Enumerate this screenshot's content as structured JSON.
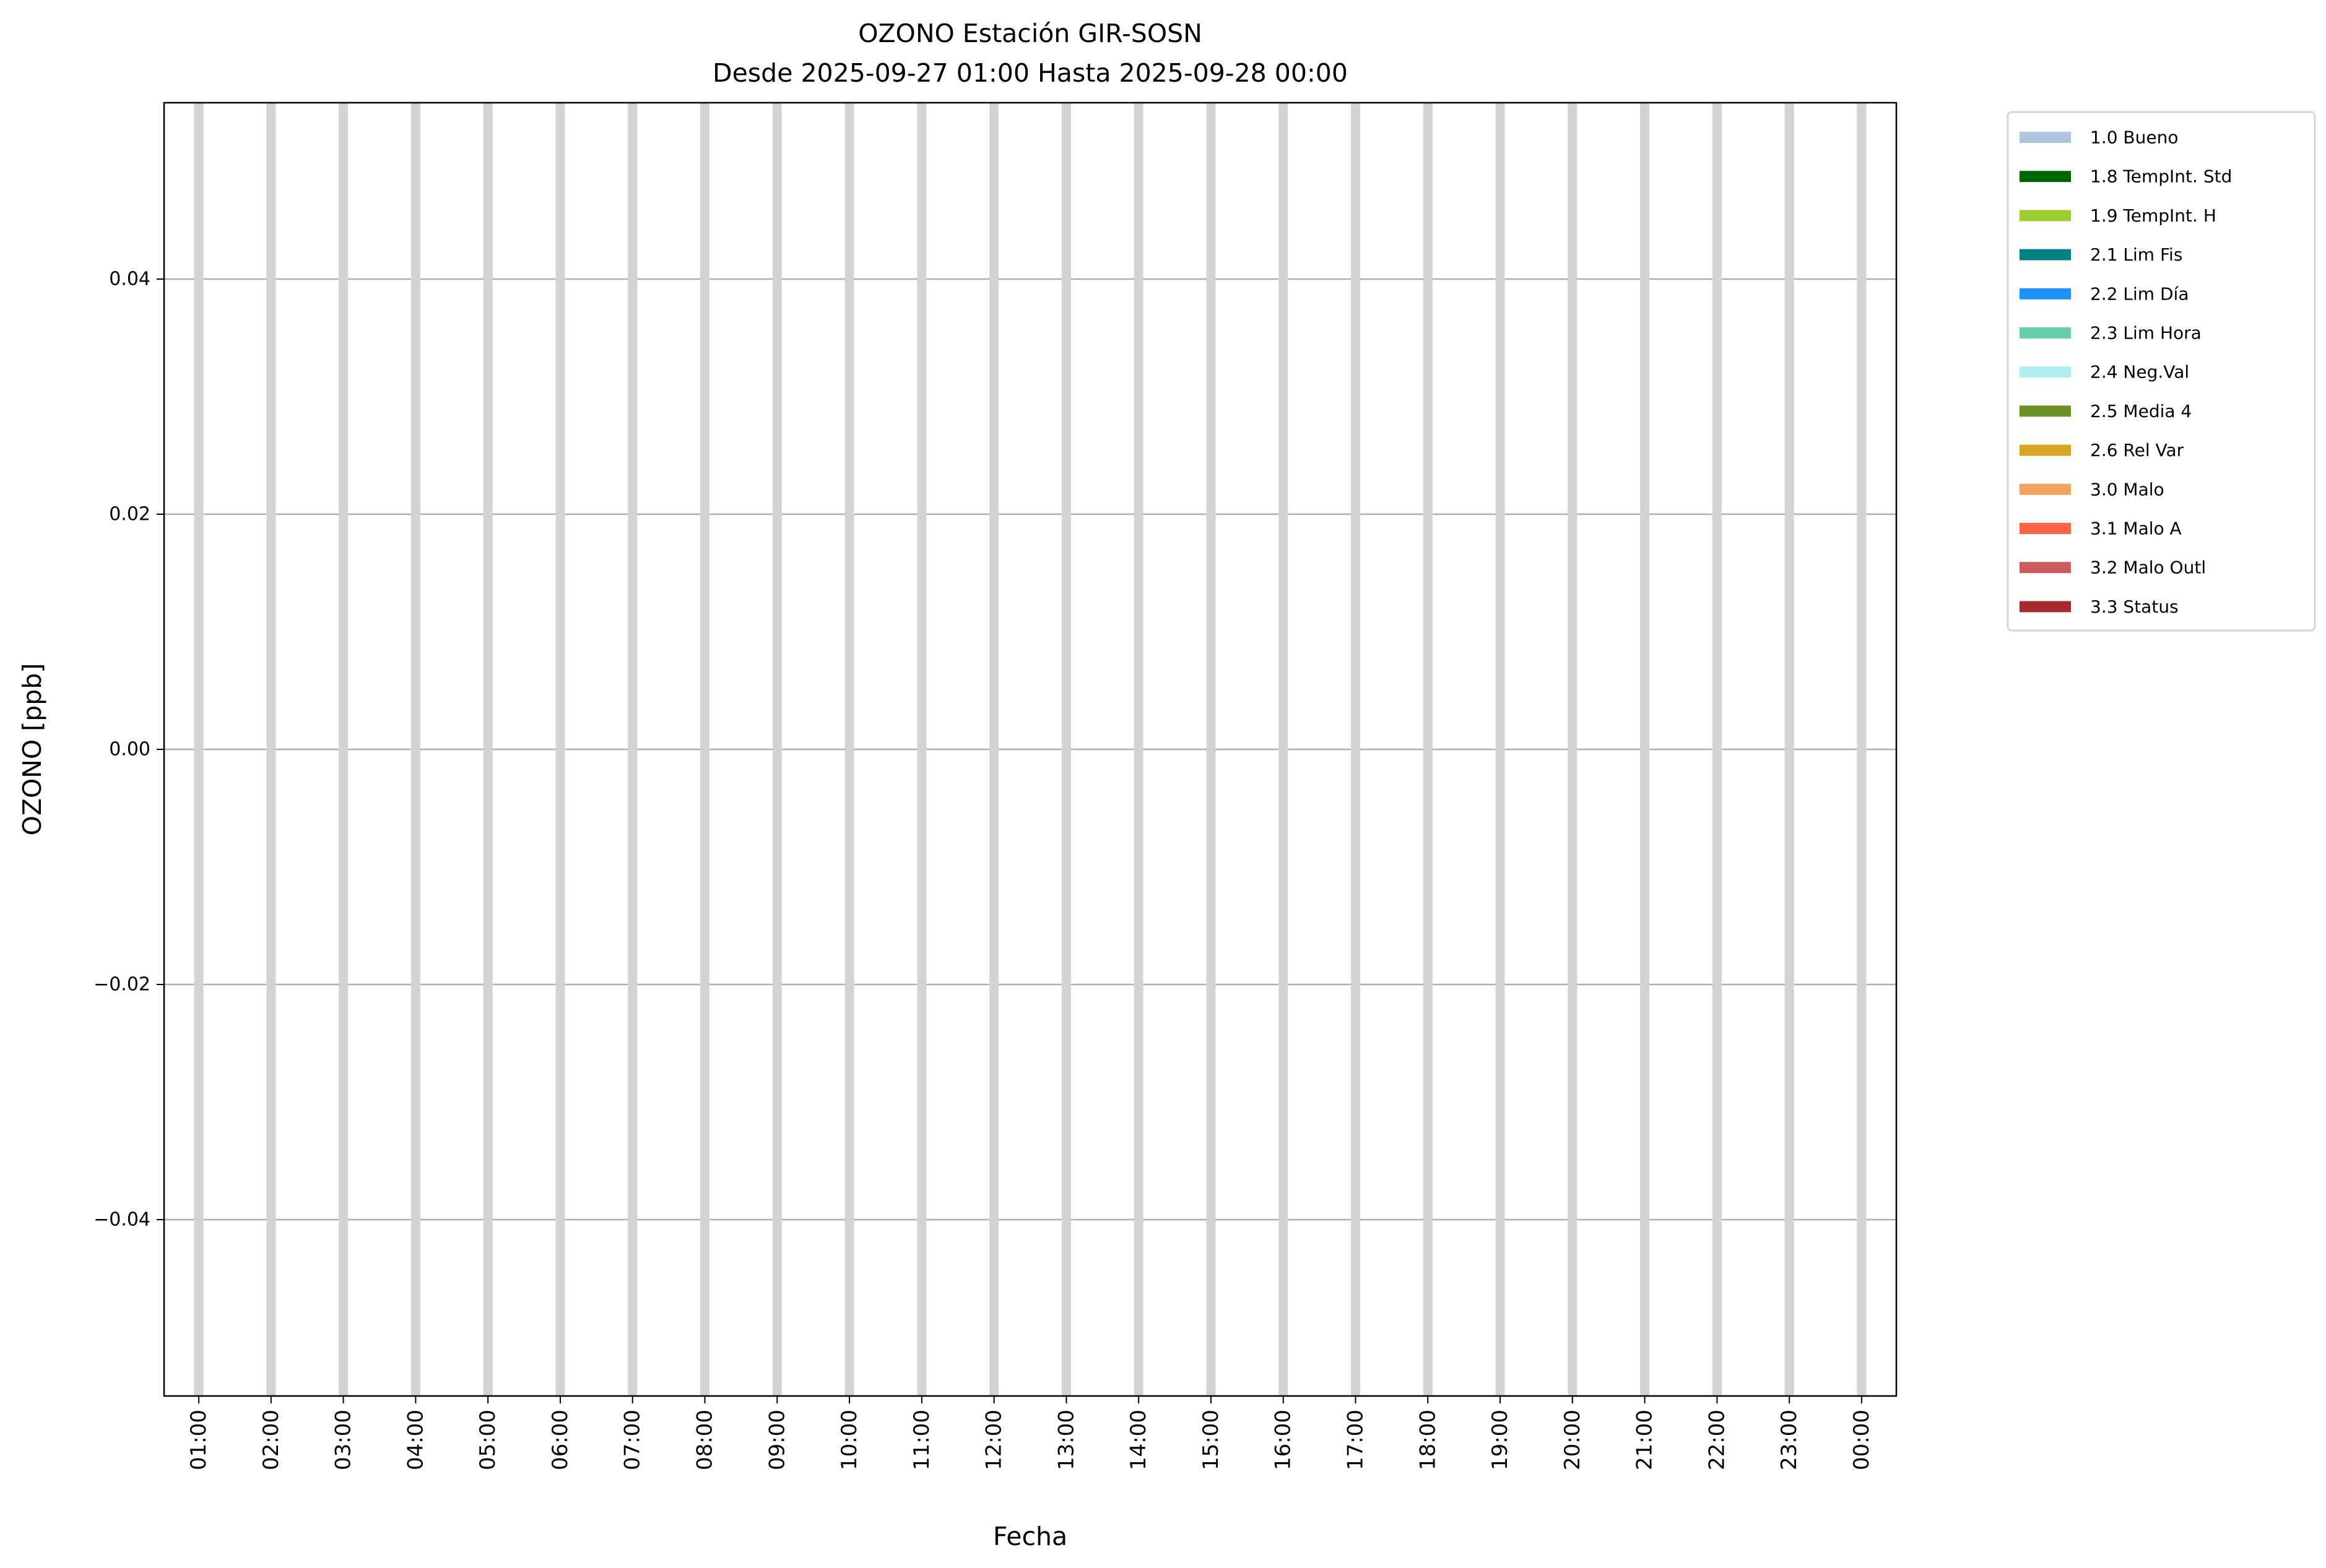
{
  "chart_data": {
    "type": "bar",
    "title": "OZONO Estación GIR-SOSN",
    "subtitle": "Desde 2025-09-27 01:00 Hasta 2025-09-28 00:00",
    "xlabel": "Fecha",
    "ylabel": "OZONO [ppb]",
    "categories": [
      "01:00",
      "02:00",
      "03:00",
      "04:00",
      "05:00",
      "06:00",
      "07:00",
      "08:00",
      "09:00",
      "10:00",
      "11:00",
      "12:00",
      "13:00",
      "14:00",
      "15:00",
      "16:00",
      "17:00",
      "18:00",
      "19:00",
      "20:00",
      "21:00",
      "22:00",
      "23:00",
      "00:00"
    ],
    "values": [
      null,
      null,
      null,
      null,
      null,
      null,
      null,
      null,
      null,
      null,
      null,
      null,
      null,
      null,
      null,
      null,
      null,
      null,
      null,
      null,
      null,
      null,
      null,
      null
    ],
    "bar_color": "#d3d3d3",
    "ylim": [
      -0.055,
      0.055
    ],
    "yticks": [
      -0.04,
      -0.02,
      0.0,
      0.02,
      0.04
    ],
    "ytick_labels": [
      "−0.04",
      "−0.02",
      "0.00",
      "0.02",
      "0.04"
    ],
    "grid": true,
    "legend_placement": "outside-top-right",
    "legend": [
      {
        "label": "1.0 Bueno",
        "color": "#b0c4de"
      },
      {
        "label": "1.8 TempInt. Std",
        "color": "#006400"
      },
      {
        "label": "1.9 TempInt. H",
        "color": "#9acd32"
      },
      {
        "label": "2.1 Lim Fis",
        "color": "#008080"
      },
      {
        "label": "2.2 Lim Día",
        "color": "#1e90ff"
      },
      {
        "label": "2.3 Lim Hora",
        "color": "#66cdaa"
      },
      {
        "label": "2.4 Neg.Val",
        "color": "#afeeee"
      },
      {
        "label": "2.5 Media 4",
        "color": "#6b8e23"
      },
      {
        "label": "2.6 Rel Var",
        "color": "#daa520"
      },
      {
        "label": "3.0 Malo",
        "color": "#f4a460"
      },
      {
        "label": "3.1 Malo A",
        "color": "#ff6347"
      },
      {
        "label": "3.2 Malo Outl",
        "color": "#cd5c5c"
      },
      {
        "label": "3.3 Status",
        "color": "#a52a2a"
      }
    ]
  }
}
